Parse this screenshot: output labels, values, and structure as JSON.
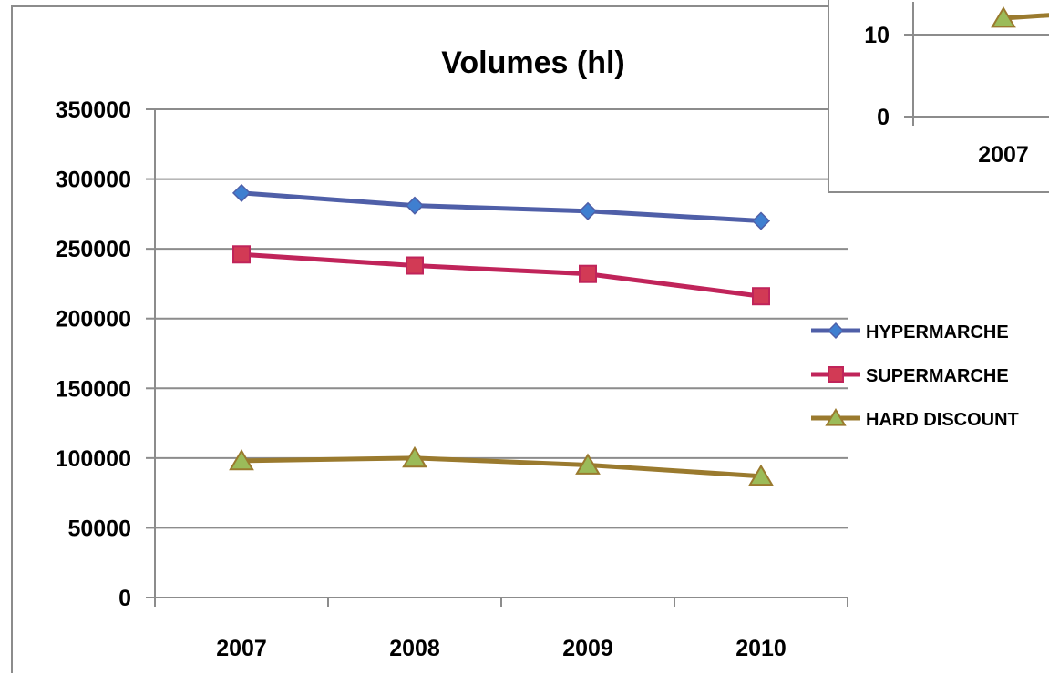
{
  "chart_data": [
    {
      "type": "line",
      "title": "Volumes (hl)",
      "xlabel": "",
      "ylabel": "",
      "categories": [
        "2007",
        "2008",
        "2009",
        "2010"
      ],
      "ylim": [
        0,
        350000
      ],
      "yticks": [
        "0",
        "50000",
        "100000",
        "150000",
        "200000",
        "250000",
        "300000",
        "350000"
      ],
      "grid": true,
      "legend_position": "right",
      "series": [
        {
          "name": "HYPERMARCHE",
          "values": [
            290000,
            281000,
            277000,
            270000
          ],
          "color": "#4f5fa8",
          "marker_color": "#3f7fd0",
          "marker": "diamond"
        },
        {
          "name": "SUPERMARCHE",
          "values": [
            246000,
            238000,
            232000,
            216000
          ],
          "color": "#c0245a",
          "marker_color": "#d23a55",
          "marker": "square"
        },
        {
          "name": "HARD DISCOUNT",
          "values": [
            98000,
            100000,
            95000,
            87000
          ],
          "color": "#9a7a2e",
          "marker_color": "#9bbb59",
          "marker": "triangle"
        }
      ]
    },
    {
      "type": "line",
      "title": "",
      "categories": [
        "2007"
      ],
      "yticks": [
        "0",
        "10"
      ],
      "series": [
        {
          "values": [
            12
          ],
          "color": "#9a7a2e",
          "marker_color": "#9bbb59",
          "marker": "triangle"
        }
      ]
    }
  ]
}
